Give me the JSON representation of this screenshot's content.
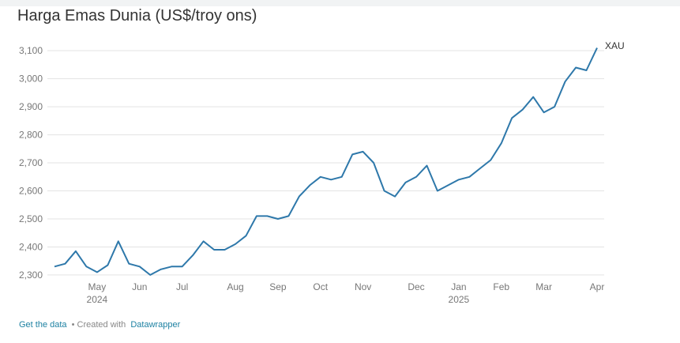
{
  "chart_data": {
    "type": "line",
    "title": "Harga Emas Dunia (US$/troy ons)",
    "categories": [
      null,
      null,
      null,
      null,
      "May",
      null,
      null,
      null,
      "Jun",
      null,
      null,
      null,
      "Jul",
      null,
      null,
      null,
      null,
      "Aug",
      null,
      null,
      null,
      "Sep",
      null,
      null,
      null,
      "Oct",
      null,
      null,
      null,
      "Nov",
      null,
      null,
      null,
      null,
      "Dec",
      null,
      null,
      null,
      "Jan",
      null,
      null,
      null,
      "Feb",
      null,
      null,
      null,
      "Mar",
      null,
      null,
      null,
      null,
      "Apr"
    ],
    "category_years": [
      null,
      null,
      null,
      null,
      "2024",
      null,
      null,
      null,
      null,
      null,
      null,
      null,
      null,
      null,
      null,
      null,
      null,
      null,
      null,
      null,
      null,
      null,
      null,
      null,
      null,
      null,
      null,
      null,
      null,
      null,
      null,
      null,
      null,
      null,
      null,
      null,
      null,
      null,
      "2025",
      null,
      null,
      null,
      null,
      null,
      null,
      null,
      null,
      null,
      null,
      null,
      null,
      null
    ],
    "series": [
      {
        "name": "XAU",
        "color": "#2e78aa",
        "values": [
          2330,
          2340,
          2385,
          2330,
          2310,
          2335,
          2420,
          2340,
          2330,
          2300,
          2320,
          2330,
          2330,
          2370,
          2420,
          2390,
          2390,
          2410,
          2440,
          2510,
          2510,
          2500,
          2510,
          2580,
          2620,
          2650,
          2640,
          2650,
          2730,
          2740,
          2700,
          2600,
          2580,
          2630,
          2650,
          2690,
          2600,
          2620,
          2640,
          2650,
          2680,
          2710,
          2770,
          2860,
          2890,
          2935,
          2880,
          2900,
          2990,
          3040,
          3030,
          3110
        ]
      }
    ],
    "ylim": [
      2280,
      3140
    ],
    "yticks": [
      {
        "value": 2300,
        "label": "2,300"
      },
      {
        "value": 2400,
        "label": "2,400"
      },
      {
        "value": 2500,
        "label": "2,500"
      },
      {
        "value": 2600,
        "label": "2,600"
      },
      {
        "value": 2700,
        "label": "2,700"
      },
      {
        "value": 2800,
        "label": "2,800"
      },
      {
        "value": 2900,
        "label": "2,900"
      },
      {
        "value": 3000,
        "label": "3,000"
      },
      {
        "value": 3100,
        "label": "3,100"
      }
    ],
    "grid": true
  },
  "footer": {
    "get_data": "Get the data",
    "created_with": "• Created with",
    "tool": "Datawrapper"
  }
}
